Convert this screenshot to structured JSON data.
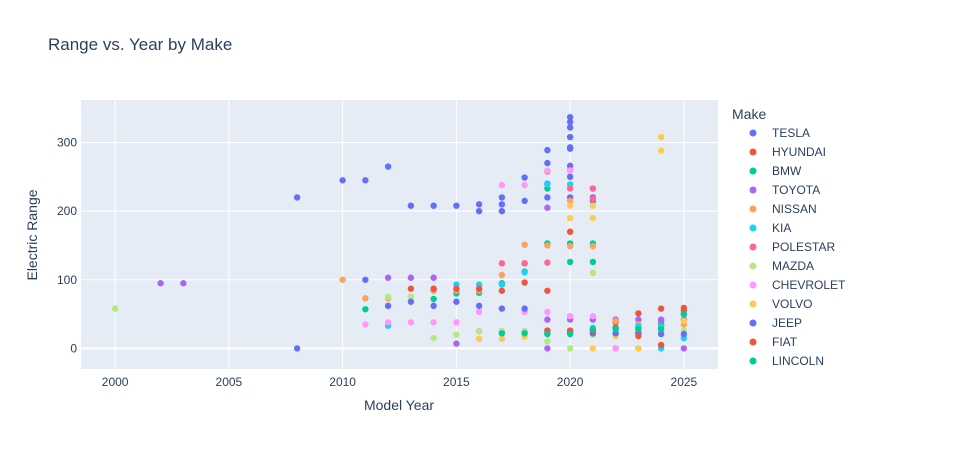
{
  "chart_data": {
    "type": "scatter",
    "title": "Range vs. Year by Make",
    "xlabel": "Model Year",
    "ylabel": "Electric Range",
    "xlim": [
      1998.5,
      2026.5
    ],
    "ylim": [
      -30,
      362
    ],
    "xticks": [
      2000,
      2005,
      2010,
      2015,
      2020,
      2025
    ],
    "yticks": [
      0,
      100,
      200,
      300
    ],
    "grid": true,
    "legend_title": "Make",
    "legend_position": "right",
    "series": [
      {
        "name": "TESLA",
        "color": "#636efa",
        "points": [
          [
            2008,
            220
          ],
          [
            2010,
            245
          ],
          [
            2011,
            245
          ],
          [
            2012,
            265
          ],
          [
            2013,
            208
          ],
          [
            2014,
            208
          ],
          [
            2015,
            208
          ],
          [
            2016,
            210
          ],
          [
            2016,
            200
          ],
          [
            2017,
            220
          ],
          [
            2017,
            210
          ],
          [
            2017,
            200
          ],
          [
            2018,
            249
          ],
          [
            2018,
            215
          ],
          [
            2019,
            289
          ],
          [
            2019,
            270
          ],
          [
            2019,
            240
          ],
          [
            2019,
            220
          ],
          [
            2020,
            337
          ],
          [
            2020,
            330
          ],
          [
            2020,
            322
          ],
          [
            2020,
            308
          ],
          [
            2020,
            293
          ],
          [
            2020,
            291
          ],
          [
            2020,
            266
          ],
          [
            2020,
            250
          ],
          [
            2020,
            220
          ],
          [
            2021,
            220
          ],
          [
            2021,
            215
          ]
        ]
      },
      {
        "name": "HYUNDAI",
        "color": "#EF553B",
        "points": [
          [
            2018,
            124
          ],
          [
            2019,
            258
          ],
          [
            2019,
            84
          ],
          [
            2020,
            170
          ],
          [
            2021,
            233
          ],
          [
            2022,
            38
          ],
          [
            2023,
            51
          ],
          [
            2024,
            58
          ],
          [
            2025,
            59
          ],
          [
            2023,
            30
          ],
          [
            2024,
            35
          ]
        ]
      },
      {
        "name": "BMW",
        "color": "#00cc96",
        "points": [
          [
            2011,
            57
          ],
          [
            2014,
            72
          ],
          [
            2015,
            80
          ],
          [
            2016,
            81
          ],
          [
            2017,
            95
          ],
          [
            2018,
            112
          ],
          [
            2019,
            153
          ],
          [
            2019,
            233
          ],
          [
            2020,
            153
          ],
          [
            2020,
            126
          ],
          [
            2021,
            153
          ],
          [
            2021,
            126
          ],
          [
            2022,
            30
          ],
          [
            2023,
            22
          ],
          [
            2024,
            40
          ],
          [
            2025,
            50
          ]
        ]
      },
      {
        "name": "TOYOTA",
        "color": "#ab63fa",
        "points": [
          [
            2002,
            95
          ],
          [
            2003,
            95
          ],
          [
            2012,
            103
          ],
          [
            2013,
            103
          ],
          [
            2014,
            103
          ],
          [
            2015,
            7
          ],
          [
            2016,
            25
          ],
          [
            2017,
            25
          ],
          [
            2018,
            25
          ],
          [
            2019,
            42
          ],
          [
            2019,
            0
          ],
          [
            2019,
            205
          ],
          [
            2020,
            42
          ],
          [
            2020,
            25
          ],
          [
            2021,
            42
          ],
          [
            2022,
            0
          ],
          [
            2022,
            42
          ],
          [
            2023,
            42
          ],
          [
            2024,
            42
          ],
          [
            2025,
            42
          ],
          [
            2025,
            0
          ]
        ]
      },
      {
        "name": "NISSAN",
        "color": "#FFA15A",
        "points": [
          [
            2010,
            100
          ],
          [
            2011,
            73
          ],
          [
            2012,
            73
          ],
          [
            2013,
            75
          ],
          [
            2014,
            84
          ],
          [
            2015,
            84
          ],
          [
            2016,
            84
          ],
          [
            2017,
            107
          ],
          [
            2018,
            151
          ],
          [
            2019,
            150
          ],
          [
            2020,
            149
          ],
          [
            2020,
            215
          ],
          [
            2021,
            149
          ],
          [
            2022,
            40
          ],
          [
            2023,
            35
          ],
          [
            2024,
            30
          ],
          [
            2025,
            35
          ]
        ]
      },
      {
        "name": "KIA",
        "color": "#19d3f3",
        "points": [
          [
            2012,
            33
          ],
          [
            2014,
            87
          ],
          [
            2015,
            93
          ],
          [
            2016,
            93
          ],
          [
            2017,
            93
          ],
          [
            2018,
            111
          ],
          [
            2019,
            239
          ],
          [
            2020,
            239
          ],
          [
            2021,
            30
          ],
          [
            2022,
            30
          ],
          [
            2023,
            32
          ],
          [
            2024,
            32
          ],
          [
            2025,
            15
          ],
          [
            2024,
            0
          ]
        ]
      },
      {
        "name": "POLESTAR",
        "color": "#FF6692",
        "points": [
          [
            2017,
            124
          ],
          [
            2018,
            124
          ],
          [
            2019,
            125
          ],
          [
            2020,
            233
          ],
          [
            2021,
            233
          ],
          [
            2021,
            218
          ],
          [
            2020,
            260
          ]
        ]
      },
      {
        "name": "MAZDA",
        "color": "#B6E880",
        "points": [
          [
            2000,
            58
          ],
          [
            2012,
            75
          ],
          [
            2013,
            75
          ],
          [
            2014,
            15
          ],
          [
            2015,
            20
          ],
          [
            2016,
            25
          ],
          [
            2017,
            25
          ],
          [
            2018,
            25
          ],
          [
            2019,
            10
          ],
          [
            2020,
            0
          ],
          [
            2021,
            110
          ],
          [
            2021,
            20
          ],
          [
            2022,
            20
          ],
          [
            2023,
            25
          ],
          [
            2024,
            26
          ],
          [
            2025,
            26
          ]
        ]
      },
      {
        "name": "CHEVROLET",
        "color": "#FF97FF",
        "points": [
          [
            2011,
            35
          ],
          [
            2012,
            38
          ],
          [
            2013,
            38
          ],
          [
            2014,
            38
          ],
          [
            2015,
            38
          ],
          [
            2016,
            53
          ],
          [
            2017,
            238
          ],
          [
            2018,
            238
          ],
          [
            2018,
            53
          ],
          [
            2019,
            259
          ],
          [
            2019,
            53
          ],
          [
            2020,
            259
          ],
          [
            2020,
            47
          ],
          [
            2021,
            47
          ],
          [
            2022,
            0
          ],
          [
            2023,
            0
          ]
        ]
      },
      {
        "name": "VOLVO",
        "color": "#FECB52",
        "points": [
          [
            2016,
            14
          ],
          [
            2017,
            14
          ],
          [
            2018,
            17
          ],
          [
            2019,
            22
          ],
          [
            2020,
            208
          ],
          [
            2020,
            190
          ],
          [
            2021,
            208
          ],
          [
            2021,
            190
          ],
          [
            2022,
            18
          ],
          [
            2023,
            0
          ],
          [
            2024,
            308
          ],
          [
            2024,
            288
          ],
          [
            2025,
            40
          ],
          [
            2021,
            0
          ]
        ]
      },
      {
        "name": "JEEP",
        "color": "#636efa",
        "points": [
          [
            2008,
            0
          ],
          [
            2011,
            100
          ],
          [
            2012,
            62
          ],
          [
            2013,
            68
          ],
          [
            2014,
            62
          ],
          [
            2015,
            68
          ],
          [
            2016,
            62
          ],
          [
            2017,
            58
          ],
          [
            2018,
            58
          ],
          [
            2019,
            22
          ],
          [
            2020,
            22
          ],
          [
            2021,
            22
          ],
          [
            2022,
            22
          ],
          [
            2023,
            22
          ],
          [
            2024,
            21
          ],
          [
            2025,
            21
          ]
        ]
      },
      {
        "name": "FIAT",
        "color": "#EF553B",
        "points": [
          [
            2013,
            87
          ],
          [
            2014,
            87
          ],
          [
            2015,
            87
          ],
          [
            2016,
            87
          ],
          [
            2017,
            84
          ],
          [
            2018,
            96
          ],
          [
            2019,
            26
          ],
          [
            2020,
            26
          ],
          [
            2021,
            26
          ],
          [
            2022,
            30
          ],
          [
            2023,
            18
          ],
          [
            2024,
            5
          ],
          [
            2025,
            55
          ]
        ]
      },
      {
        "name": "LINCOLN",
        "color": "#00cc96",
        "points": [
          [
            2017,
            22
          ],
          [
            2018,
            22
          ],
          [
            2019,
            21
          ],
          [
            2020,
            21
          ],
          [
            2021,
            28
          ],
          [
            2022,
            28
          ],
          [
            2023,
            28
          ],
          [
            2024,
            28
          ],
          [
            2025,
            50
          ]
        ]
      }
    ]
  }
}
